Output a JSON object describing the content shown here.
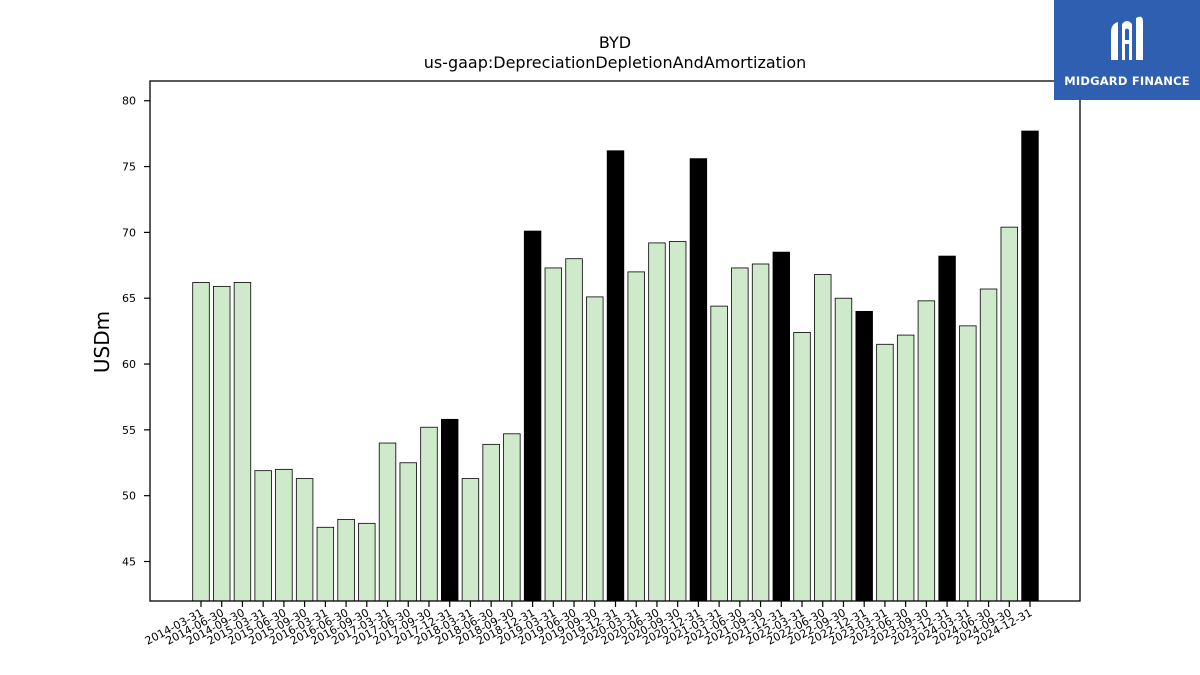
{
  "chart_data": {
    "type": "bar",
    "title": "BYD",
    "subtitle": "us-gaap:DepreciationDepletionAndAmortization",
    "xlabel": "",
    "ylabel": "USDm",
    "ylim": [
      42,
      81.5
    ],
    "yticks": [
      45,
      50,
      55,
      60,
      65,
      70,
      75,
      80
    ],
    "grid": false,
    "colors": {
      "quarter": "#cfeacb",
      "annual": "#000000",
      "edge": "#000000"
    },
    "categories": [
      "2014-03-31",
      "2014-06-30",
      "2014-09-30",
      "2015-03-31",
      "2015-06-30",
      "2015-09-30",
      "2016-03-31",
      "2016-06-30",
      "2016-09-30",
      "2017-03-31",
      "2017-06-30",
      "2017-09-30",
      "2017-12-31",
      "2018-03-31",
      "2018-06-30",
      "2018-09-30",
      "2018-12-31",
      "2019-03-31",
      "2019-06-30",
      "2019-09-30",
      "2019-12-31",
      "2020-03-31",
      "2020-06-30",
      "2020-09-30",
      "2020-12-31",
      "2021-03-31",
      "2021-06-30",
      "2021-09-30",
      "2021-12-31",
      "2022-03-31",
      "2022-06-30",
      "2022-09-30",
      "2022-12-31",
      "2023-03-31",
      "2023-06-30",
      "2023-09-30",
      "2023-12-31",
      "2024-03-31",
      "2024-06-30",
      "2024-09-30",
      "2024-12-31"
    ],
    "values": [
      66.2,
      65.9,
      66.2,
      51.9,
      52.0,
      51.3,
      47.6,
      48.2,
      47.9,
      54.0,
      52.5,
      55.2,
      55.8,
      51.3,
      53.9,
      54.7,
      70.1,
      67.3,
      68.0,
      65.1,
      76.2,
      67.0,
      69.2,
      69.3,
      75.6,
      64.4,
      67.3,
      67.6,
      68.5,
      62.4,
      66.8,
      65.0,
      64.0,
      61.5,
      62.2,
      64.8,
      68.2,
      62.9,
      65.7,
      70.4,
      77.7
    ],
    "annual_flags": [
      false,
      false,
      false,
      false,
      false,
      false,
      false,
      false,
      false,
      false,
      false,
      false,
      true,
      false,
      false,
      false,
      true,
      false,
      false,
      false,
      true,
      false,
      false,
      false,
      true,
      false,
      false,
      false,
      true,
      false,
      false,
      false,
      true,
      false,
      false,
      false,
      true,
      false,
      false,
      false,
      true
    ]
  },
  "logo": {
    "text": "MIDGARD FINANCE"
  }
}
